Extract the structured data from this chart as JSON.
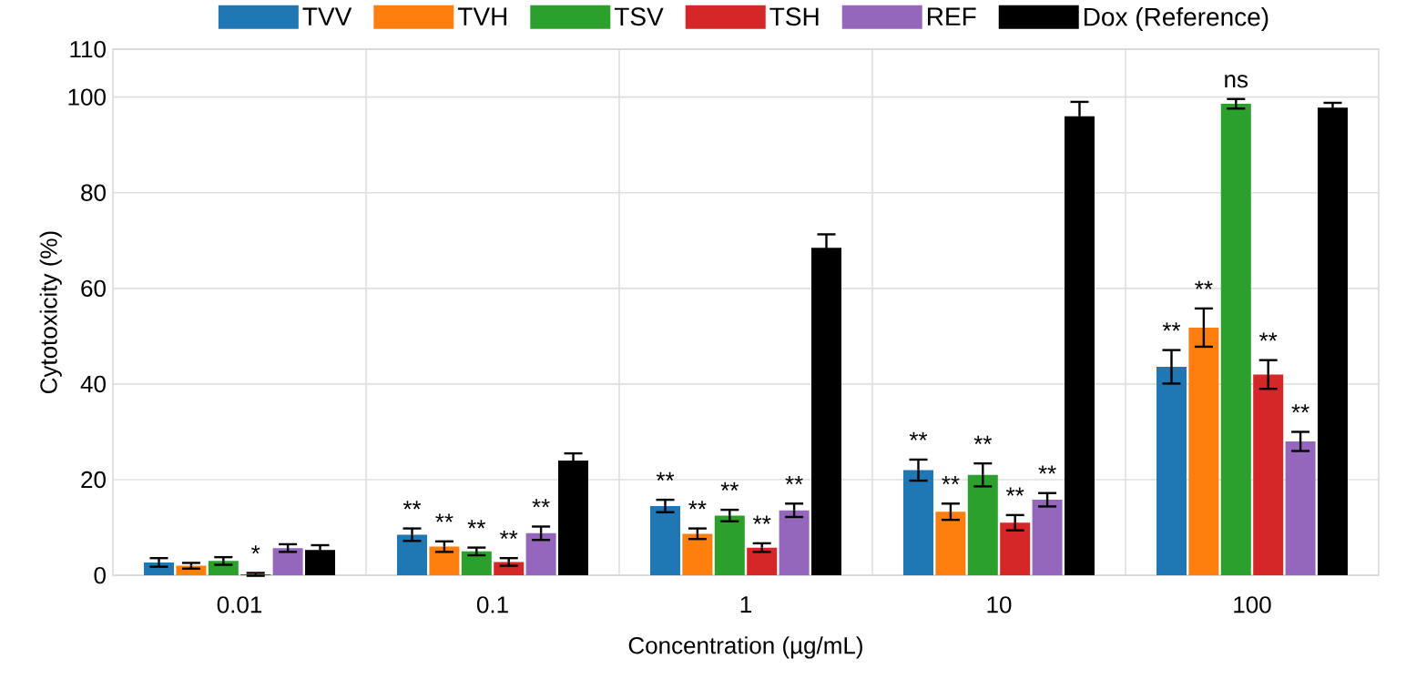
{
  "chart_data": {
    "type": "bar",
    "xlabel": "Concentration (µg/mL)",
    "ylabel": "Cytotoxicity (%)",
    "categories": [
      "0.01",
      "0.1",
      "1",
      "10",
      "100"
    ],
    "ylim": [
      0,
      110
    ],
    "yticks": [
      0,
      20,
      40,
      60,
      80,
      100,
      110
    ],
    "grid": true,
    "legend": "top",
    "series": [
      {
        "name": "TVV",
        "color": "#1f77b4",
        "values": [
          2.7,
          8.5,
          14.5,
          22,
          43.6
        ],
        "errors": [
          0.9,
          1.3,
          1.3,
          2.2,
          3.5
        ],
        "value_labels": [
          null,
          "**",
          "**",
          "**",
          "**"
        ]
      },
      {
        "name": "TVH",
        "color": "#ff7f0e",
        "values": [
          2,
          6,
          8.7,
          13.3,
          51.8
        ],
        "errors": [
          0.6,
          1.1,
          1.1,
          1.7,
          4
        ],
        "value_labels": [
          null,
          "**",
          "**",
          "**",
          "**"
        ]
      },
      {
        "name": "TSV",
        "color": "#2ca02c",
        "values": [
          3,
          5,
          12.5,
          21,
          98.6
        ],
        "errors": [
          0.8,
          0.8,
          1.2,
          2.4,
          1
        ],
        "value_labels": [
          null,
          "**",
          "**",
          "**",
          "ns"
        ]
      },
      {
        "name": "TSH",
        "color": "#d62728",
        "values": [
          0.2,
          2.8,
          5.8,
          11,
          42
        ],
        "errors": [
          0.3,
          0.8,
          0.9,
          1.6,
          3
        ],
        "value_labels": [
          "*",
          "**",
          "**",
          "**",
          "**"
        ]
      },
      {
        "name": "REF",
        "color": "#9467bd",
        "values": [
          5.7,
          8.8,
          13.6,
          15.8,
          28
        ],
        "errors": [
          0.8,
          1.4,
          1.4,
          1.4,
          2
        ],
        "value_labels": [
          null,
          "**",
          "**",
          "**",
          "**"
        ]
      },
      {
        "name": "Dox (Reference)",
        "color": "#000000",
        "values": [
          5.3,
          24,
          68.5,
          96,
          97.8
        ],
        "errors": [
          1,
          1.5,
          2.8,
          3,
          1
        ]
      }
    ]
  }
}
